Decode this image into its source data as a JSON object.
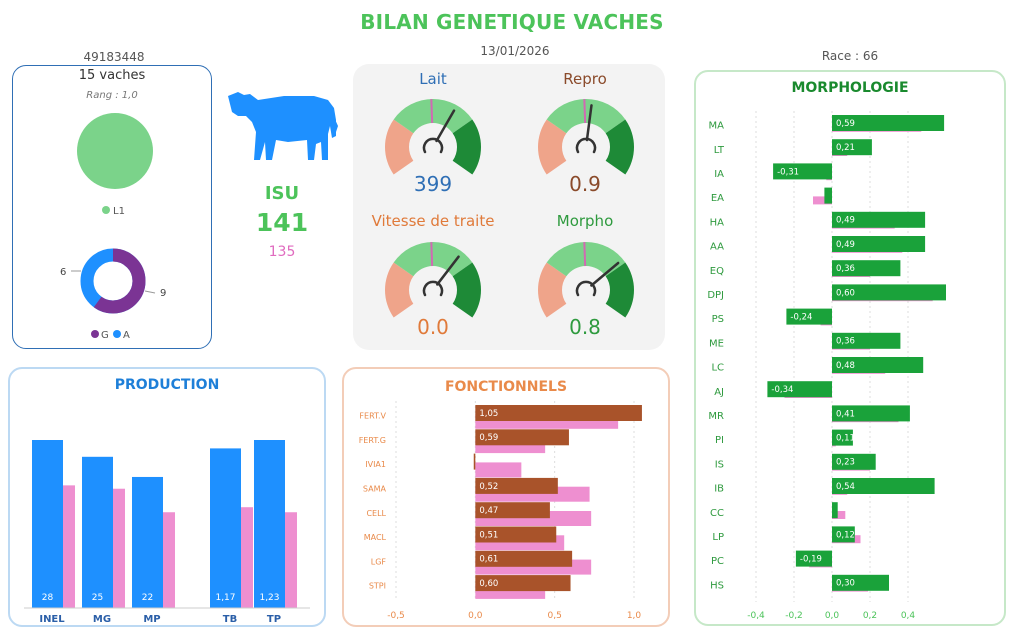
{
  "header": {
    "title": "BILAN GENETIQUE VACHES",
    "date": "13/01/2026",
    "herd_id": "49183448",
    "race": "Race : 66"
  },
  "herd_card": {
    "count": "15 vaches",
    "rank": "Rang : 1,0",
    "pie_legend": "L1",
    "donut_values": [
      "6",
      "9"
    ],
    "donut_legend": [
      "G",
      "A"
    ]
  },
  "isu": {
    "label": "ISU",
    "value": "141",
    "sub": "135"
  },
  "gauges": [
    {
      "title": "Lait",
      "value": "399",
      "title_color": "#2f6fb5",
      "value_color": "#2f6fb5",
      "fill": 0.62
    },
    {
      "title": "Repro",
      "value": "0.9",
      "title_color": "#8a4a2a",
      "value_color": "#8a4a2a",
      "fill": 0.53
    },
    {
      "title": "Vitesse de traite",
      "value": "0.0",
      "title_color": "#e07a3a",
      "value_color": "#e07a3a",
      "fill": 0.65
    },
    {
      "title": "Morpho",
      "value": "0.8",
      "title_color": "#2e9a3e",
      "value_color": "#2e9a3e",
      "fill": 0.7
    }
  ],
  "colors": {
    "green": "#4cc35a",
    "blue": "#1e90ff",
    "pink": "#ee8fd0",
    "brown": "#a9532a",
    "dark_green": "#1aa23a",
    "orange_title": "#e98a4a"
  },
  "production": {
    "title": "PRODUCTION",
    "chart_data": {
      "type": "bar",
      "categories": [
        "INEL",
        "MG",
        "MP",
        "TB",
        "TP"
      ],
      "series": [
        {
          "values": [
            28,
            25,
            22,
            1.17,
            1.23
          ]
        },
        {
          "values": [
            null,
            null,
            null,
            null,
            null
          ]
        }
      ],
      "labels": [
        "28",
        "25",
        "22",
        "1,17",
        "1,23"
      ],
      "main_height": [
        1.0,
        0.9,
        0.78,
        0.95,
        1.0
      ],
      "secondary_height": [
        0.73,
        0.71,
        0.57,
        0.6,
        0.57
      ]
    }
  },
  "fonctionnels": {
    "title": "FONCTIONNELS",
    "chart_data": {
      "type": "bar",
      "categories": [
        "FERT.V",
        "FERT.G",
        "IVIA1",
        "SAMA",
        "CELL",
        "MACL",
        "LGF",
        "STPI"
      ],
      "series": [
        {
          "values": [
            1.05,
            0.59,
            -0.01,
            0.52,
            0.47,
            0.51,
            0.61,
            0.6
          ]
        },
        {
          "values": [
            0.9,
            0.44,
            0.29,
            0.72,
            0.73,
            0.56,
            0.73,
            0.44
          ]
        }
      ],
      "labels": [
        "1,05",
        "0,59",
        "",
        "0,52",
        "0,47",
        "0,51",
        "0,61",
        "0,60"
      ],
      "xlim": [
        -0.5,
        1.0
      ],
      "xticks": [
        "-0,5",
        "0,0",
        "0,5",
        "1,0"
      ]
    }
  },
  "morphologie": {
    "title": "MORPHOLOGIE",
    "chart_data": {
      "type": "bar",
      "categories": [
        "MA",
        "LT",
        "IA",
        "EA",
        "HA",
        "AA",
        "EQ",
        "DPJ",
        "PS",
        "ME",
        "LC",
        "AJ",
        "MR",
        "PI",
        "IS",
        "IB",
        "CC",
        "LP",
        "PC",
        "HS"
      ],
      "series": [
        {
          "values": [
            0.59,
            0.21,
            -0.31,
            -0.04,
            0.49,
            0.49,
            0.36,
            0.6,
            -0.24,
            0.36,
            0.48,
            -0.34,
            0.41,
            0.11,
            0.23,
            0.54,
            0.03,
            0.12,
            -0.19,
            0.3
          ]
        },
        {
          "values": [
            0.47,
            0.08,
            -0.03,
            -0.1,
            0.33,
            0.37,
            0.2,
            0.53,
            -0.06,
            0.2,
            0.28,
            -0.25,
            0.35,
            0.02,
            0.2,
            0.08,
            0.07,
            0.15,
            -0.12,
            0.19
          ]
        }
      ],
      "labels": [
        "0,59",
        "0,21",
        "-0,31",
        "",
        "0,49",
        "0,49",
        "0,36",
        "0,60",
        "-0,24",
        "0,36",
        "0,48",
        "-0,34",
        "0,41",
        "0,11",
        "0,23",
        "0,54",
        "",
        "0,12",
        "-0,19",
        "0,30"
      ],
      "xlim": [
        -0.4,
        0.6
      ],
      "xticks": [
        "-0,4",
        "-0,2",
        "0,0",
        "0,2",
        "0,4"
      ]
    }
  }
}
